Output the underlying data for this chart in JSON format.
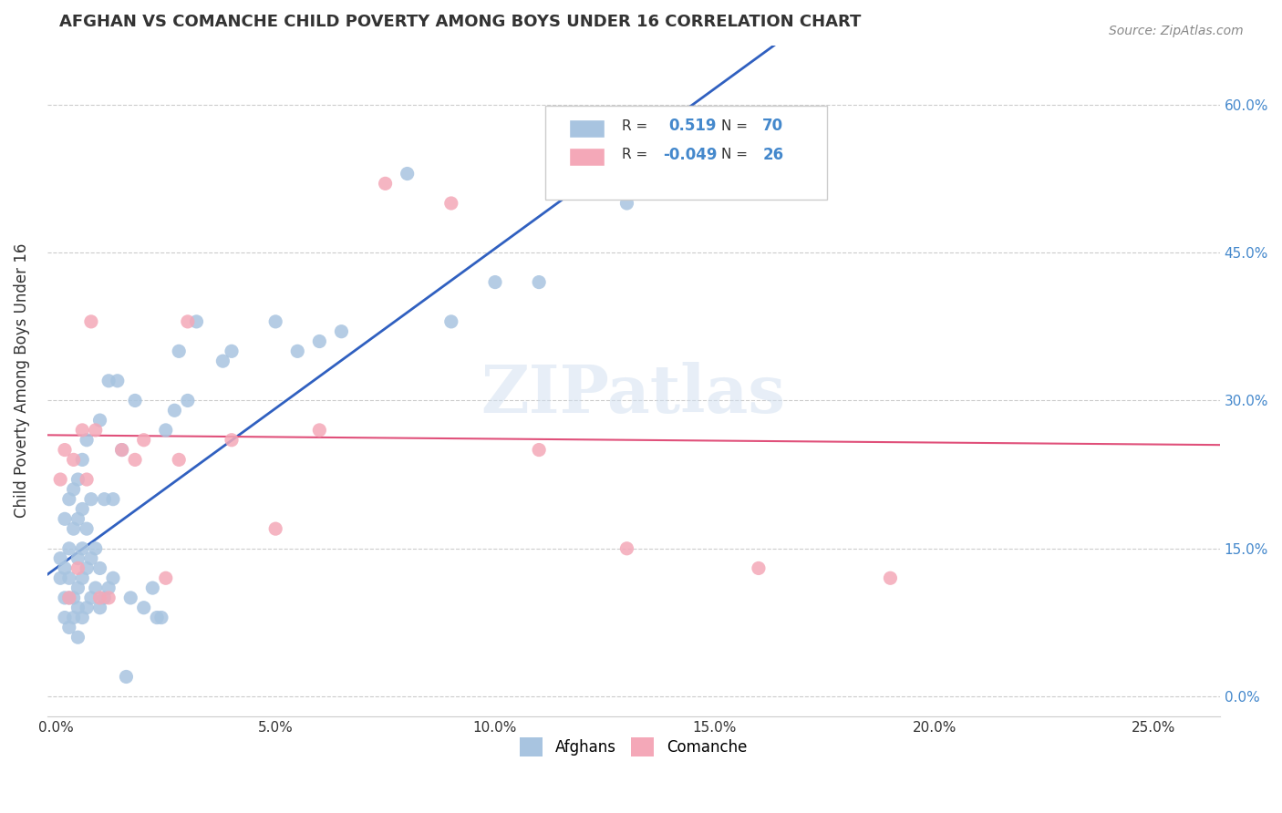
{
  "title": "AFGHAN VS COMANCHE CHILD POVERTY AMONG BOYS UNDER 16 CORRELATION CHART",
  "source": "Source: ZipAtlas.com",
  "ylabel": "Child Poverty Among Boys Under 16",
  "xlabel_ticks": [
    "0.0%",
    "5.0%",
    "10.0%",
    "15.0%",
    "20.0%",
    "25.0%"
  ],
  "xlabel_vals": [
    0.0,
    0.05,
    0.1,
    0.15,
    0.2,
    0.25
  ],
  "ylabel_ticks": [
    "0.0%",
    "15.0%",
    "30.0%",
    "45.0%",
    "60.0%"
  ],
  "ylabel_vals": [
    0.0,
    0.15,
    0.3,
    0.45,
    0.6
  ],
  "xlim": [
    -0.002,
    0.265
  ],
  "ylim": [
    -0.02,
    0.66
  ],
  "afghan_color": "#a8c4e0",
  "comanche_color": "#f4a8b8",
  "afghan_R": 0.519,
  "afghan_N": 70,
  "comanche_R": -0.049,
  "comanche_N": 26,
  "watermark": "ZIPatlas",
  "afghan_line_color": "#3060c0",
  "comanche_line_color": "#e0507a",
  "legend_line_color": "#c0c0c0",
  "afghan_x": [
    0.001,
    0.001,
    0.002,
    0.002,
    0.002,
    0.002,
    0.003,
    0.003,
    0.003,
    0.003,
    0.003,
    0.004,
    0.004,
    0.004,
    0.004,
    0.005,
    0.005,
    0.005,
    0.005,
    0.005,
    0.005,
    0.006,
    0.006,
    0.006,
    0.006,
    0.006,
    0.007,
    0.007,
    0.007,
    0.007,
    0.008,
    0.008,
    0.008,
    0.009,
    0.009,
    0.01,
    0.01,
    0.01,
    0.011,
    0.011,
    0.012,
    0.012,
    0.013,
    0.013,
    0.014,
    0.015,
    0.016,
    0.017,
    0.018,
    0.02,
    0.022,
    0.023,
    0.024,
    0.025,
    0.027,
    0.028,
    0.03,
    0.032,
    0.038,
    0.04,
    0.05,
    0.055,
    0.06,
    0.065,
    0.08,
    0.09,
    0.1,
    0.11,
    0.13,
    0.145
  ],
  "afghan_y": [
    0.12,
    0.14,
    0.08,
    0.1,
    0.13,
    0.18,
    0.07,
    0.1,
    0.12,
    0.15,
    0.2,
    0.08,
    0.1,
    0.17,
    0.21,
    0.06,
    0.09,
    0.11,
    0.14,
    0.18,
    0.22,
    0.08,
    0.12,
    0.15,
    0.19,
    0.24,
    0.09,
    0.13,
    0.17,
    0.26,
    0.1,
    0.14,
    0.2,
    0.11,
    0.15,
    0.09,
    0.13,
    0.28,
    0.1,
    0.2,
    0.11,
    0.32,
    0.12,
    0.2,
    0.32,
    0.25,
    0.02,
    0.1,
    0.3,
    0.09,
    0.11,
    0.08,
    0.08,
    0.27,
    0.29,
    0.35,
    0.3,
    0.38,
    0.34,
    0.35,
    0.38,
    0.35,
    0.36,
    0.37,
    0.53,
    0.38,
    0.42,
    0.42,
    0.5,
    0.58
  ],
  "comanche_x": [
    0.001,
    0.002,
    0.003,
    0.004,
    0.005,
    0.006,
    0.007,
    0.008,
    0.009,
    0.01,
    0.012,
    0.015,
    0.018,
    0.02,
    0.025,
    0.028,
    0.03,
    0.04,
    0.05,
    0.06,
    0.075,
    0.09,
    0.11,
    0.13,
    0.16,
    0.19
  ],
  "comanche_y": [
    0.22,
    0.25,
    0.1,
    0.24,
    0.13,
    0.27,
    0.22,
    0.38,
    0.27,
    0.1,
    0.1,
    0.25,
    0.24,
    0.26,
    0.12,
    0.24,
    0.38,
    0.26,
    0.17,
    0.27,
    0.52,
    0.5,
    0.25,
    0.15,
    0.13,
    0.12
  ]
}
